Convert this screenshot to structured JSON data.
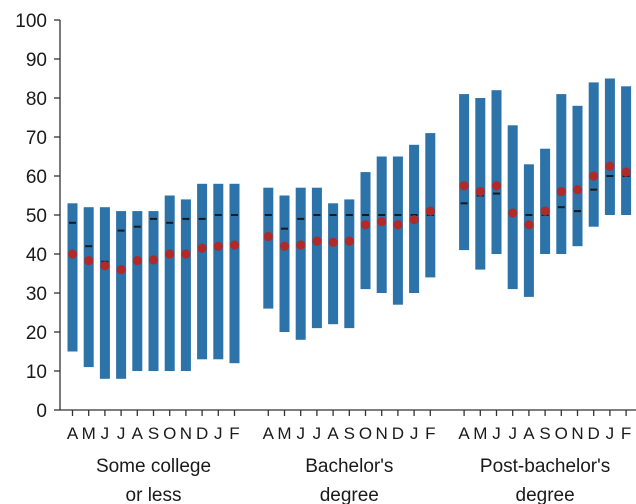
{
  "chart_data": {
    "type": "range",
    "ylim": [
      0,
      100
    ],
    "yticks": [
      0,
      10,
      20,
      30,
      40,
      50,
      60,
      70,
      80,
      90,
      100
    ],
    "grid": false,
    "legend": "none",
    "colors": {
      "bar": "#2b73a8",
      "median": "#1a1a1a",
      "mean": "#b02a2a"
    },
    "months": [
      "A",
      "M",
      "J",
      "J",
      "A",
      "S",
      "O",
      "N",
      "D",
      "J",
      "F"
    ],
    "groups": [
      {
        "label_lines": [
          "Some college",
          "or less"
        ],
        "low": [
          15,
          11,
          8,
          8,
          10,
          10,
          10,
          10,
          13,
          13,
          12
        ],
        "high": [
          53,
          52,
          52,
          51,
          51,
          51,
          55,
          54,
          58,
          58,
          58
        ],
        "median": [
          48,
          42,
          38,
          46,
          47,
          49,
          48,
          49,
          49,
          50,
          50
        ],
        "mean": [
          40,
          38.3,
          37,
          36,
          38.3,
          38.5,
          40,
          40,
          41.5,
          42,
          42.3
        ]
      },
      {
        "label_lines": [
          "Bachelor's",
          "degree"
        ],
        "low": [
          26,
          20,
          18,
          21,
          22,
          21,
          31,
          30,
          27,
          30,
          34
        ],
        "high": [
          57,
          55,
          57,
          57,
          53,
          54,
          61,
          65,
          65,
          68,
          71
        ],
        "median": [
          50,
          46.5,
          49,
          50,
          50,
          50,
          50,
          50,
          50,
          50,
          50
        ],
        "mean": [
          44.5,
          42,
          42.3,
          43.3,
          43,
          43.3,
          47.5,
          48.3,
          47.5,
          48.8,
          51
        ]
      },
      {
        "label_lines": [
          "Post-bachelor's",
          "degree"
        ],
        "low": [
          41,
          36,
          40,
          31,
          29,
          40,
          40,
          42,
          47,
          50,
          50
        ],
        "high": [
          81,
          80,
          82,
          73,
          63,
          67,
          81,
          78,
          84,
          85,
          83
        ],
        "median": [
          53,
          55,
          55.5,
          50.5,
          50,
          50,
          52,
          51,
          56.5,
          60,
          60
        ],
        "mean": [
          57.5,
          56,
          57.5,
          50.5,
          47.5,
          51,
          56,
          56.5,
          60,
          62.5,
          61
        ]
      }
    ]
  }
}
